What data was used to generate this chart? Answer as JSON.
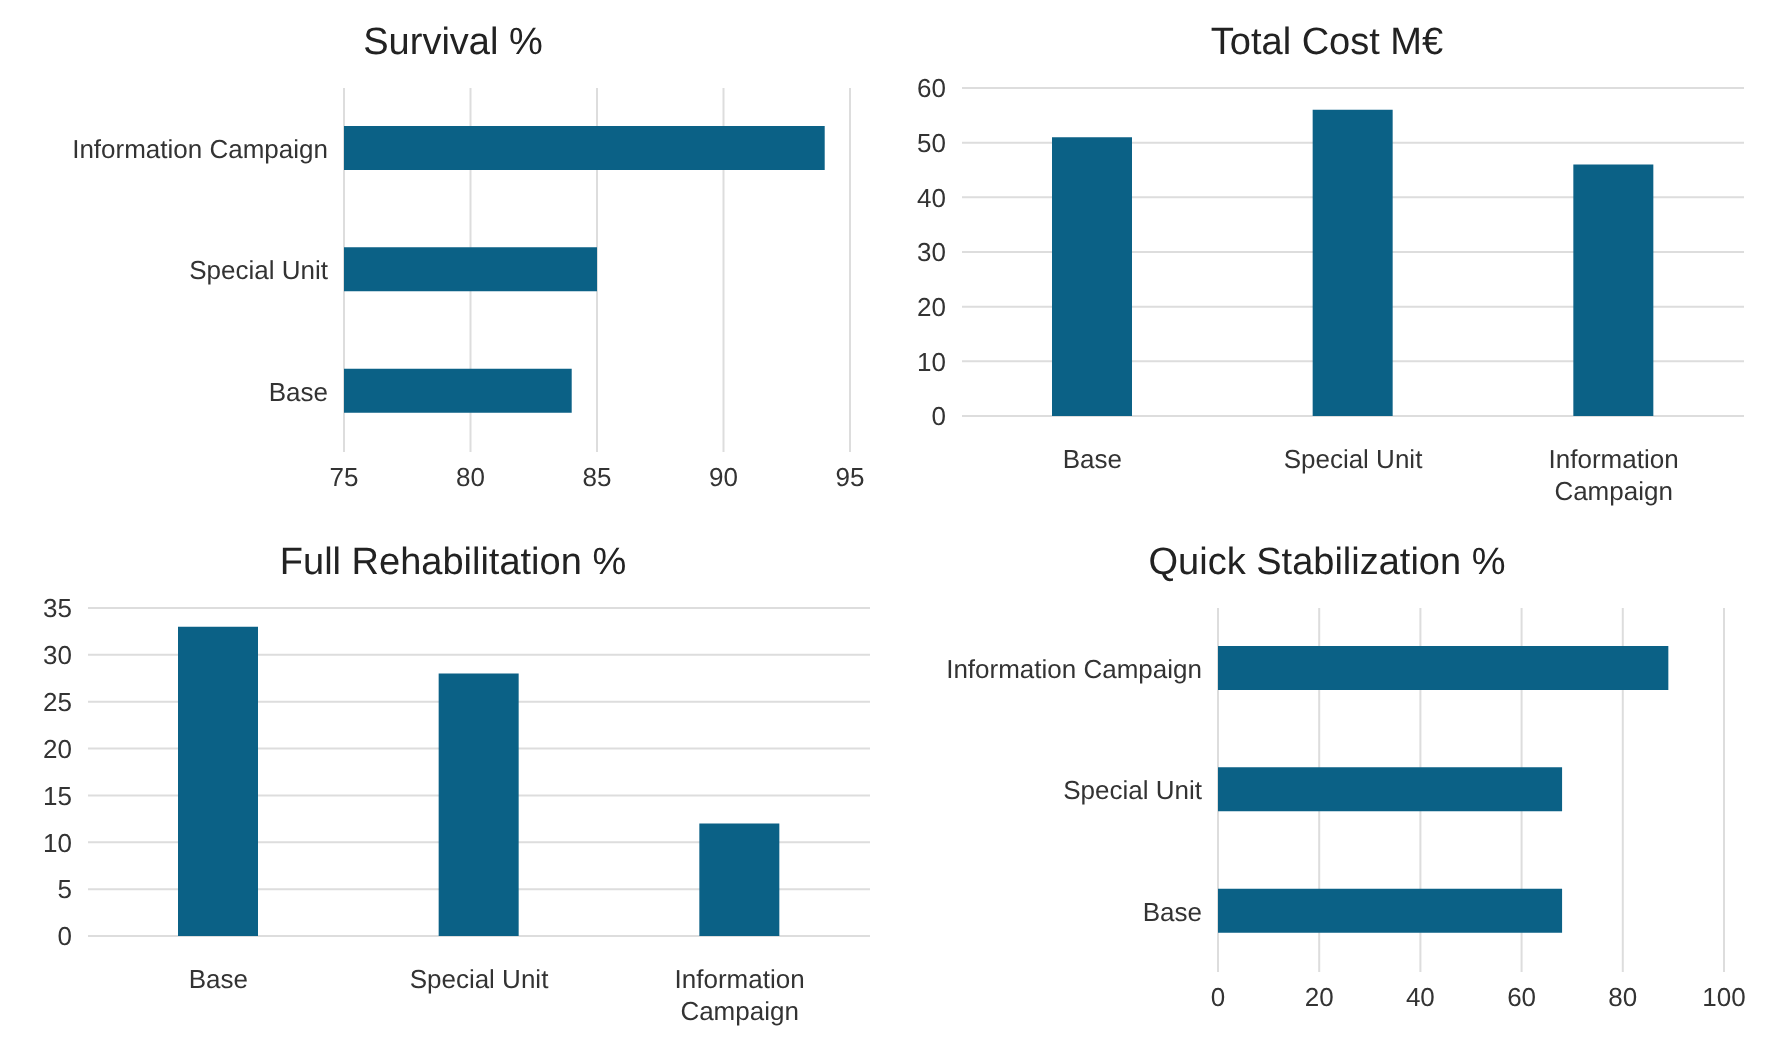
{
  "chart_data": [
    {
      "type": "bar",
      "title": "Survival %",
      "orientation": "horizontal",
      "categories": [
        "Information Campaign",
        "Special Unit",
        "Base"
      ],
      "values": [
        94,
        85,
        84
      ],
      "color": "#0b6186",
      "xlim": [
        75,
        95
      ],
      "xticks": [
        75,
        80,
        85,
        90,
        95
      ],
      "grid": "x"
    },
    {
      "type": "bar",
      "title": "Total Cost M€",
      "categories": [
        "Base",
        "Special Unit",
        "Information Campaign"
      ],
      "values": [
        51,
        56,
        46
      ],
      "color": "#0b6186",
      "ylim": [
        0,
        60
      ],
      "yticks": [
        0,
        10,
        20,
        30,
        40,
        50,
        60
      ],
      "grid": "y"
    },
    {
      "type": "bar",
      "title": "Full Rehabilitation %",
      "categories": [
        "Base",
        "Special Unit",
        "Information Campaign"
      ],
      "values": [
        33,
        28,
        12
      ],
      "color": "#0b6186",
      "ylim": [
        0,
        35
      ],
      "yticks": [
        0,
        5,
        10,
        15,
        20,
        25,
        30,
        35
      ],
      "grid": "y"
    },
    {
      "type": "bar",
      "title": "Quick Stabilization %",
      "orientation": "horizontal",
      "categories": [
        "Information Campaign",
        "Special Unit",
        "Base"
      ],
      "values": [
        89,
        68,
        68
      ],
      "color": "#0b6186",
      "xlim": [
        0,
        100
      ],
      "xticks": [
        0,
        20,
        40,
        60,
        80,
        100
      ],
      "grid": "x"
    }
  ]
}
